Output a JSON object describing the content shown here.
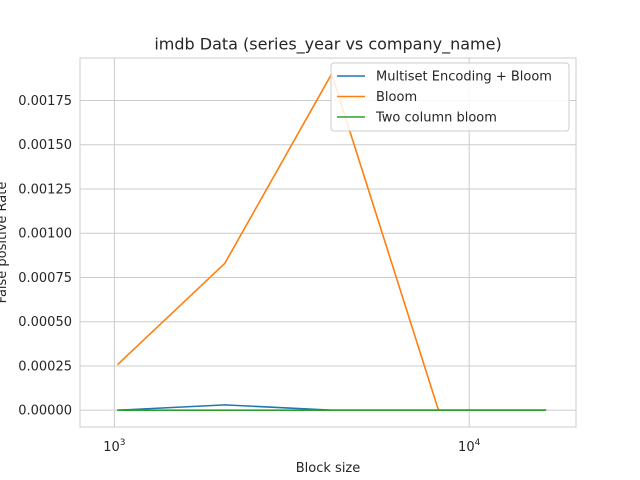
{
  "chart_data": {
    "type": "line",
    "title": "imdb Data (series_year vs company_name)",
    "xlabel": "Block size",
    "ylabel": "False positive Rate",
    "xscale": "log",
    "xlim": [
      800,
      20000
    ],
    "ylim": [
      -9.5e-05,
      0.00199
    ],
    "grid": true,
    "legend_position": "top-right",
    "x": [
      1024,
      2048,
      4096,
      8192,
      16384
    ],
    "x_ticks": [
      {
        "value": 1000,
        "base": "10",
        "exp": "3"
      },
      {
        "value": 10000,
        "base": "10",
        "exp": "4"
      }
    ],
    "y_ticks": [
      {
        "value": 0.0,
        "label": "0.00000"
      },
      {
        "value": 0.00025,
        "label": "0.00025"
      },
      {
        "value": 0.0005,
        "label": "0.00050"
      },
      {
        "value": 0.00075,
        "label": "0.00075"
      },
      {
        "value": 0.001,
        "label": "0.00100"
      },
      {
        "value": 0.00125,
        "label": "0.00125"
      },
      {
        "value": 0.0015,
        "label": "0.00150"
      },
      {
        "value": 0.00175,
        "label": "0.00175"
      }
    ],
    "series": [
      {
        "name": "Multiset Encoding + Bloom",
        "color": "#1f77b4",
        "values": [
          0.0,
          3e-05,
          0.0,
          0.0,
          0.0
        ]
      },
      {
        "name": "Bloom",
        "color": "#ff7f0e",
        "values": [
          0.00026,
          0.00083,
          0.0019,
          0.0,
          0.0
        ]
      },
      {
        "name": "Two column bloom",
        "color": "#2ca02c",
        "values": [
          0.0,
          0.0,
          0.0,
          0.0,
          0.0
        ]
      }
    ]
  }
}
